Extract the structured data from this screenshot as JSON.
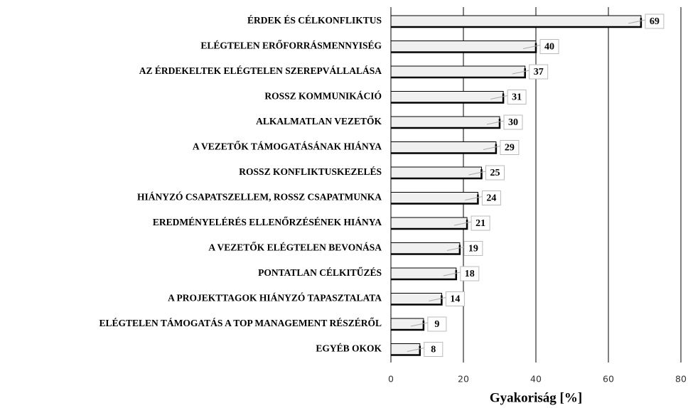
{
  "chart_data": {
    "type": "bar",
    "orientation": "horizontal",
    "categories": [
      "ÉRDEK ÉS CÉLKONFLIKTUS",
      "ELÉGTELEN ERŐFORRÁSMENNYISÉG",
      "AZ ÉRDEKELTEK ELÉGTELEN SZEREPVÁLLALÁSA",
      "ROSSZ KOMMUNIKÁCIÓ",
      "ALKALMATLAN VEZETŐK",
      "A VEZETŐK TÁMOGATÁSÁNAK HIÁNYA",
      "ROSSZ KONFLIKTUSKEZELÉS",
      "HIÁNYZÓ CSAPATSZELLEM, ROSSZ CSAPATMUNKA",
      "EREDMÉNYELÉRÉS ELLENŐRZÉSÉNEK HIÁNYA",
      "A VEZETŐK ELÉGTELEN BEVONÁSA",
      "PONTATLAN CÉLKITŰZÉS",
      "A PROJEKTTAGOK HIÁNYZÓ TAPASZTALATA",
      "ELÉGTELEN TÁMOGATÁS A TOP MANAGEMENT RÉSZÉRŐL",
      "EGYÉB OKOK"
    ],
    "values": [
      69,
      40,
      37,
      31,
      30,
      29,
      25,
      24,
      21,
      19,
      18,
      14,
      9,
      8
    ],
    "color": "#f0f0f0",
    "xlim": [
      0,
      80
    ],
    "xticks": [
      0,
      20,
      40,
      60,
      80
    ],
    "grid": true,
    "xlabel": "Gyakoriság [%]"
  }
}
